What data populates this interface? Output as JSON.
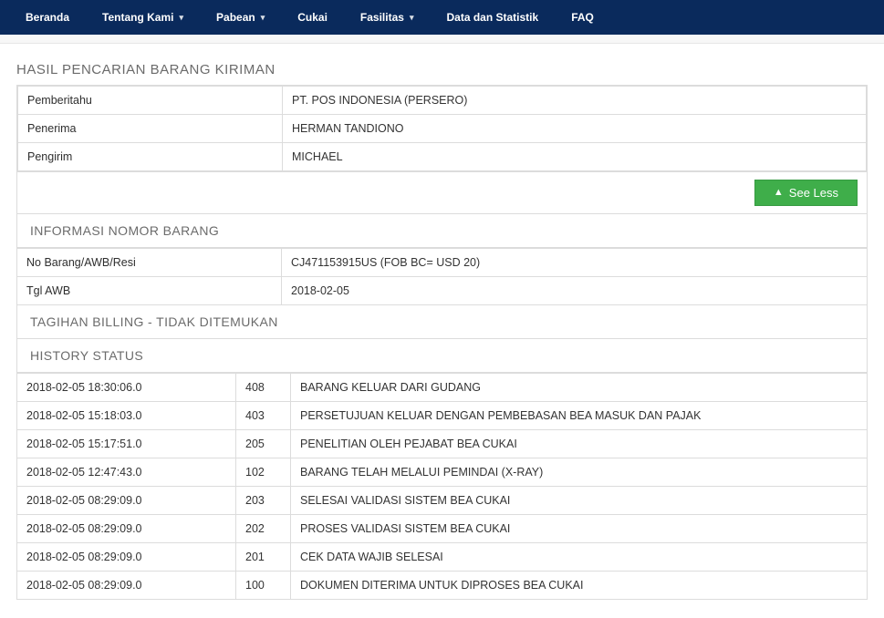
{
  "nav": {
    "items": [
      {
        "label": "Beranda",
        "dropdown": false
      },
      {
        "label": "Tentang Kami",
        "dropdown": true
      },
      {
        "label": "Pabean",
        "dropdown": true
      },
      {
        "label": "Cukai",
        "dropdown": false
      },
      {
        "label": "Fasilitas",
        "dropdown": true
      },
      {
        "label": "Data dan Statistik",
        "dropdown": false
      },
      {
        "label": "FAQ",
        "dropdown": false
      }
    ]
  },
  "page": {
    "title": "HASIL PENCARIAN BARANG KIRIMAN"
  },
  "summary": {
    "rows": [
      {
        "key": "Pemberitahu",
        "value": "PT. POS INDONESIA (PERSERO)"
      },
      {
        "key": "Penerima",
        "value": "HERMAN TANDIONO"
      },
      {
        "key": "Pengirim",
        "value": "MICHAEL"
      }
    ]
  },
  "actions": {
    "see_less": "See Less"
  },
  "info_barang": {
    "header": "INFORMASI NOMOR BARANG",
    "rows": [
      {
        "key": "No Barang/AWB/Resi",
        "value": "CJ471153915US (FOB BC= USD 20)"
      },
      {
        "key": "Tgl AWB",
        "value": "2018-02-05"
      }
    ]
  },
  "billing": {
    "header": "TAGIHAN BILLING - TIDAK DITEMUKAN"
  },
  "history": {
    "header": "HISTORY STATUS",
    "rows": [
      {
        "time": "2018-02-05 18:30:06.0",
        "code": "408",
        "desc": "BARANG KELUAR DARI GUDANG"
      },
      {
        "time": "2018-02-05 15:18:03.0",
        "code": "403",
        "desc": "PERSETUJUAN KELUAR DENGAN PEMBEBASAN BEA MASUK DAN PAJAK"
      },
      {
        "time": "2018-02-05 15:17:51.0",
        "code": "205",
        "desc": "PENELITIAN OLEH PEJABAT BEA CUKAI"
      },
      {
        "time": "2018-02-05 12:47:43.0",
        "code": "102",
        "desc": "BARANG TELAH MELALUI PEMINDAI (X-RAY)"
      },
      {
        "time": "2018-02-05 08:29:09.0",
        "code": "203",
        "desc": "SELESAI VALIDASI SISTEM BEA CUKAI"
      },
      {
        "time": "2018-02-05 08:29:09.0",
        "code": "202",
        "desc": "PROSES VALIDASI SISTEM BEA CUKAI"
      },
      {
        "time": "2018-02-05 08:29:09.0",
        "code": "201",
        "desc": "CEK DATA WAJIB SELESAI"
      },
      {
        "time": "2018-02-05 08:29:09.0",
        "code": "100",
        "desc": "DOKUMEN DITERIMA UNTUK DIPROSES BEA CUKAI"
      }
    ]
  },
  "colors": {
    "nav_bg": "#0a2a5c",
    "nav_text": "#ffffff",
    "border": "#dcdcdc",
    "title_text": "#6b6b6b",
    "btn_green_bg": "#3fae4a",
    "btn_green_border": "#379b42",
    "body_text": "#333333"
  }
}
